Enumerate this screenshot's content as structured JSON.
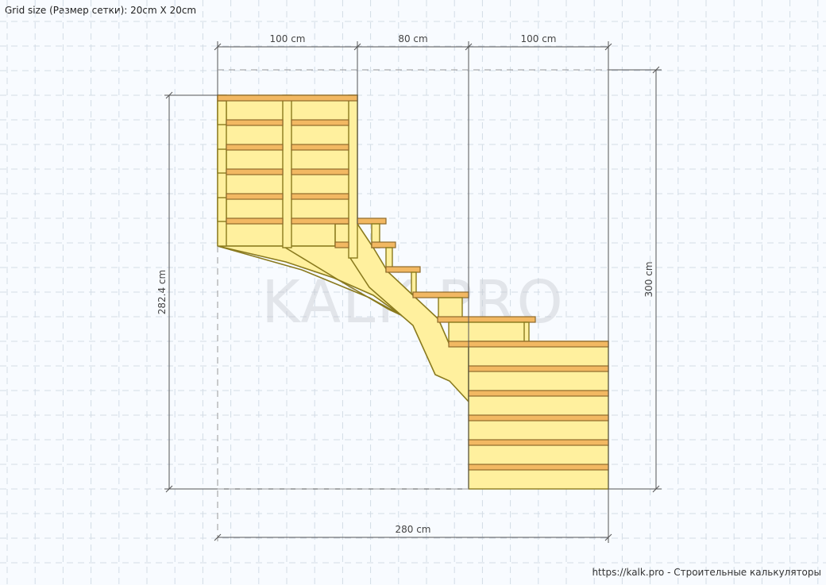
{
  "grid_caption": "Grid size (Размер сетки): 20cm X 20cm",
  "watermark": "KALK.PRO",
  "site_credit": "https://kalk.pro - Строительные калькуляторы",
  "dimensions": {
    "top_left": "100 cm",
    "top_middle": "80 cm",
    "top_right": "100 cm",
    "bottom_total": "280 cm",
    "left_height": "282.4 cm",
    "right_height": "300 cm"
  },
  "colors": {
    "background": "#f8fbff",
    "stringer_fill": "#fff09e",
    "tread_fill": "#f2b862",
    "outline": "#8a7a1e"
  }
}
